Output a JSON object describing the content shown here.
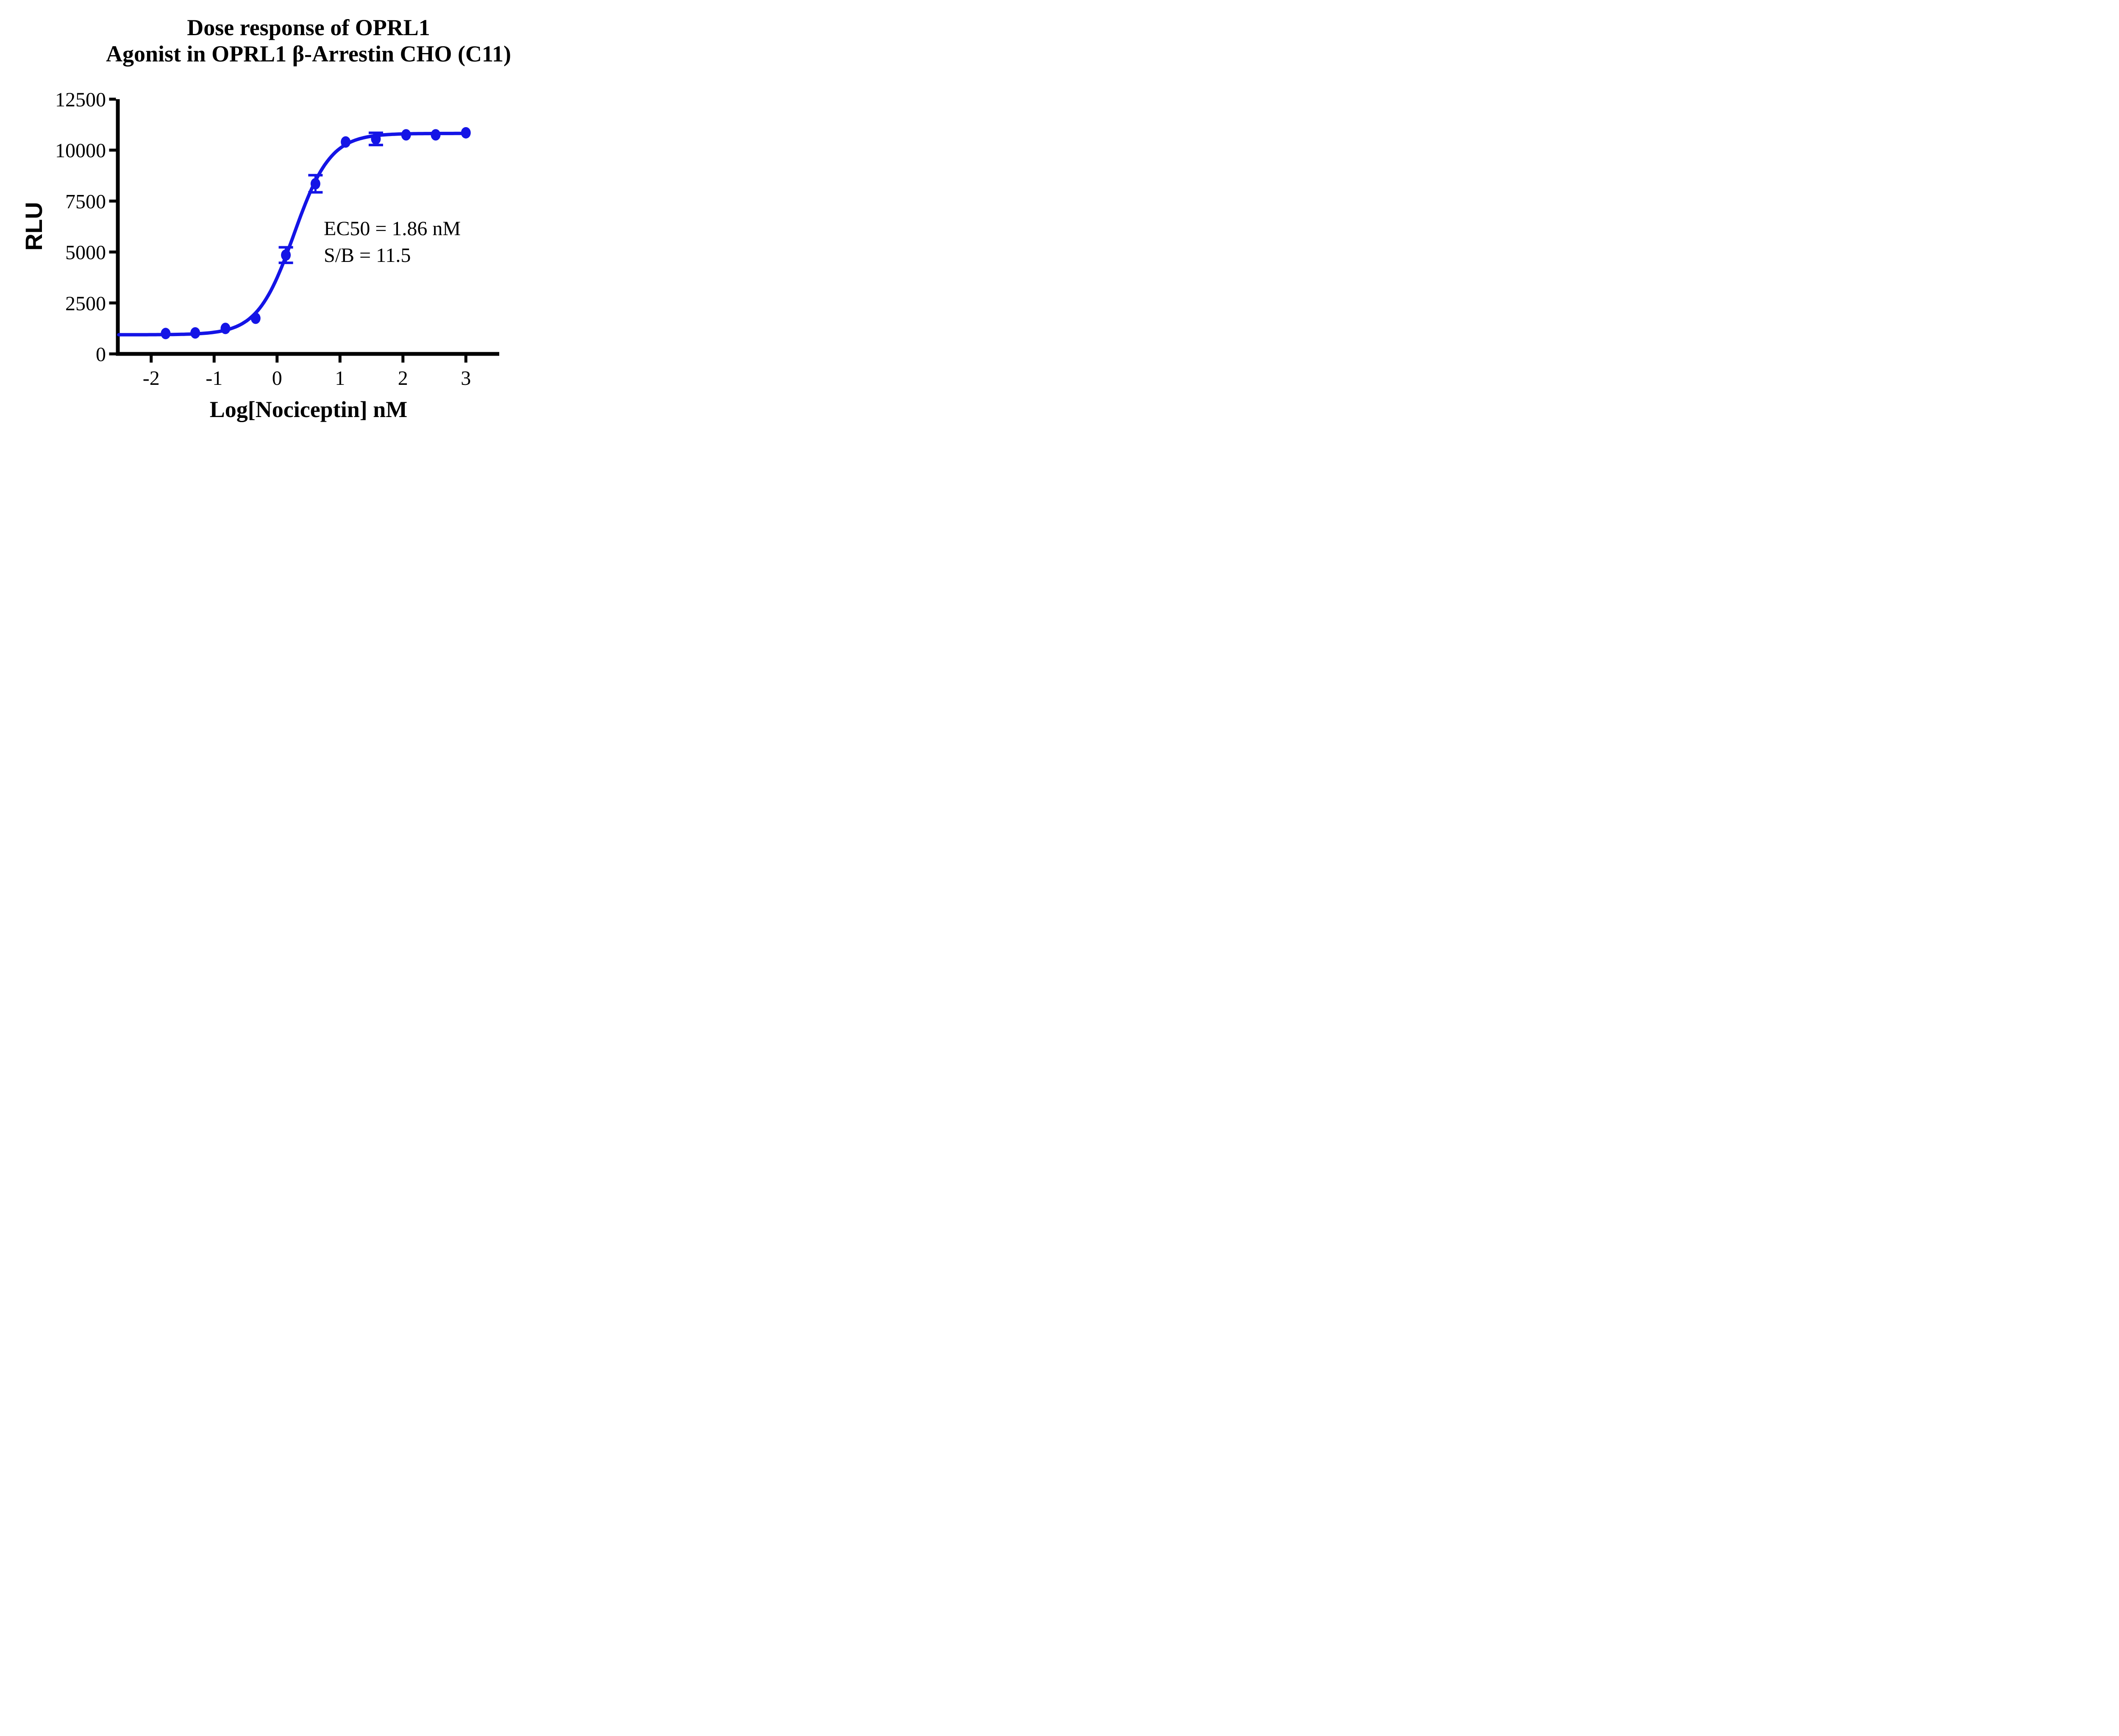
{
  "figure": {
    "title_line1": "Dose response of OPRL1",
    "title_line2": "Agonist in OPRL1 β-Arrestin CHO (C11)"
  },
  "chart_data": {
    "type": "scatter",
    "title": "Dose response of OPRL1 Agonist in OPRL1 β-Arrestin CHO (C11)",
    "xlabel": "Log[Nociceptin] nM",
    "ylabel": "RLU",
    "xlim": [
      -2.53,
      3.53
    ],
    "ylim": [
      0,
      12500
    ],
    "xticks": [
      -2,
      -1,
      0,
      1,
      2,
      3
    ],
    "yticks": [
      0,
      2500,
      5000,
      7500,
      10000,
      12500
    ],
    "grid": false,
    "legend_position": "none",
    "series": [
      {
        "name": "Nociceptin",
        "marker": "circle",
        "color": "#1414e6",
        "x": [
          -1.77,
          -1.3,
          -0.82,
          -0.34,
          0.14,
          0.61,
          1.09,
          1.57,
          2.05,
          2.52,
          3.0
        ],
        "y": [
          1000,
          1030,
          1250,
          1750,
          4850,
          8350,
          10400,
          10550,
          10750,
          10750,
          10850
        ],
        "yerr": [
          0,
          0,
          0,
          0,
          380,
          420,
          0,
          300,
          0,
          0,
          0
        ]
      }
    ],
    "fit_curve": {
      "model": "4PL-sigmoid",
      "bottom": 940,
      "top": 10820,
      "ec50_nm": 1.86,
      "hill": 1.5
    },
    "annotations": [
      {
        "text": "EC50 = 1.86 nM"
      },
      {
        "text": "S/B = 11.5"
      }
    ]
  },
  "colors": {
    "curve": "#1414e6",
    "axis": "#000000",
    "text": "#000000",
    "background": "#ffffff"
  }
}
